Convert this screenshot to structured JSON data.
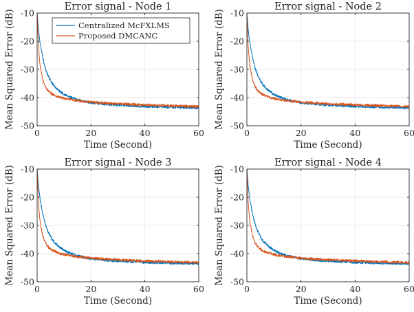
{
  "chart_data": [
    {
      "type": "line",
      "title": "Error signal - Node 1",
      "xlabel": "Time (Second)",
      "ylabel": "Mean Squared Error (dB)",
      "xlim": [
        0,
        60
      ],
      "ylim": [
        -50,
        -10
      ],
      "xticks": [
        0,
        20,
        40,
        60
      ],
      "yticks": [
        -10,
        -20,
        -30,
        -40,
        -50
      ],
      "grid": true,
      "legend": "top-left",
      "series": [
        {
          "name": "Centralized McFXLMS",
          "color": "#0072BD",
          "x": [
            0,
            0.5,
            1,
            2,
            3,
            4,
            5,
            6,
            8,
            10,
            12,
            15,
            20,
            25,
            30,
            40,
            50,
            60
          ],
          "y": [
            -10,
            -16,
            -20,
            -25.5,
            -29.5,
            -32,
            -34,
            -35.5,
            -37.5,
            -38.8,
            -39.8,
            -40.8,
            -41.8,
            -42.3,
            -42.6,
            -43.1,
            -43.4,
            -43.6
          ]
        },
        {
          "name": "Proposed DMCANC",
          "color": "#D95319",
          "x": [
            0,
            0.5,
            1,
            2,
            3,
            4,
            5,
            6,
            8,
            10,
            12,
            15,
            20,
            25,
            30,
            40,
            50,
            60
          ],
          "y": [
            -10,
            -22,
            -28,
            -33.5,
            -36,
            -37.5,
            -38.4,
            -39,
            -39.8,
            -40.3,
            -40.7,
            -41.1,
            -41.6,
            -41.9,
            -42.2,
            -42.6,
            -42.9,
            -43.2
          ]
        }
      ]
    },
    {
      "type": "line",
      "title": "Error signal - Node 2",
      "xlabel": "Time (Second)",
      "ylabel": "Mean Squared Error (dB)",
      "xlim": [
        0,
        60
      ],
      "ylim": [
        -50,
        -10
      ],
      "xticks": [
        0,
        20,
        40,
        60
      ],
      "yticks": [
        -10,
        -20,
        -30,
        -40,
        -50
      ],
      "grid": true,
      "series": [
        {
          "name": "Centralized McFXLMS",
          "color": "#0072BD",
          "x": [
            0,
            0.5,
            1,
            2,
            3,
            4,
            5,
            6,
            8,
            10,
            12,
            15,
            20,
            25,
            30,
            40,
            50,
            60
          ],
          "y": [
            -10,
            -16,
            -20,
            -25.5,
            -29.5,
            -32,
            -34,
            -35.5,
            -37.5,
            -38.8,
            -39.8,
            -40.8,
            -41.8,
            -42.3,
            -42.6,
            -43.1,
            -43.4,
            -43.6
          ]
        },
        {
          "name": "Proposed DMCANC",
          "color": "#D95319",
          "x": [
            0,
            0.5,
            1,
            2,
            3,
            4,
            5,
            6,
            8,
            10,
            12,
            15,
            20,
            25,
            30,
            40,
            50,
            60
          ],
          "y": [
            -10,
            -22,
            -28,
            -33.5,
            -36,
            -37.5,
            -38.4,
            -39,
            -39.8,
            -40.3,
            -40.7,
            -41.1,
            -41.6,
            -41.9,
            -42.2,
            -42.6,
            -42.9,
            -43.2
          ]
        }
      ]
    },
    {
      "type": "line",
      "title": "Error signal - Node 3",
      "xlabel": "Time (Second)",
      "ylabel": "Mean Squared Error (dB)",
      "xlim": [
        0,
        60
      ],
      "ylim": [
        -50,
        -10
      ],
      "xticks": [
        0,
        20,
        40,
        60
      ],
      "yticks": [
        -10,
        -20,
        -30,
        -40,
        -50
      ],
      "grid": true,
      "series": [
        {
          "name": "Centralized McFXLMS",
          "color": "#0072BD",
          "x": [
            0,
            0.5,
            1,
            2,
            3,
            4,
            5,
            6,
            8,
            10,
            12,
            15,
            20,
            25,
            30,
            40,
            50,
            60
          ],
          "y": [
            -10,
            -16,
            -20,
            -25.5,
            -29.5,
            -32,
            -34,
            -35.5,
            -37.5,
            -38.8,
            -39.8,
            -40.8,
            -41.8,
            -42.3,
            -42.6,
            -43.1,
            -43.4,
            -43.6
          ]
        },
        {
          "name": "Proposed DMCANC",
          "color": "#D95319",
          "x": [
            0,
            0.5,
            1,
            2,
            3,
            4,
            5,
            6,
            8,
            10,
            12,
            15,
            20,
            25,
            30,
            40,
            50,
            60
          ],
          "y": [
            -10,
            -22,
            -28,
            -33.5,
            -36,
            -37.5,
            -38.4,
            -39,
            -39.8,
            -40.3,
            -40.7,
            -41.1,
            -41.6,
            -41.9,
            -42.2,
            -42.6,
            -42.9,
            -43.2
          ]
        }
      ]
    },
    {
      "type": "line",
      "title": "Error signal - Node 4",
      "xlabel": "Time (Second)",
      "ylabel": "Mean Squared Error (dB)",
      "xlim": [
        0,
        60
      ],
      "ylim": [
        -50,
        -10
      ],
      "xticks": [
        0,
        20,
        40,
        60
      ],
      "yticks": [
        -10,
        -20,
        -30,
        -40,
        -50
      ],
      "grid": true,
      "series": [
        {
          "name": "Centralized McFXLMS",
          "color": "#0072BD",
          "x": [
            0,
            0.5,
            1,
            2,
            3,
            4,
            5,
            6,
            8,
            10,
            12,
            15,
            20,
            25,
            30,
            40,
            50,
            60
          ],
          "y": [
            -10,
            -16,
            -20,
            -25.5,
            -29.5,
            -32,
            -34,
            -35.5,
            -37.5,
            -38.8,
            -39.8,
            -40.8,
            -41.8,
            -42.3,
            -42.6,
            -43.1,
            -43.4,
            -43.6
          ]
        },
        {
          "name": "Proposed DMCANC",
          "color": "#D95319",
          "x": [
            0,
            0.5,
            1,
            2,
            3,
            4,
            5,
            6,
            8,
            10,
            12,
            15,
            20,
            25,
            30,
            40,
            50,
            60
          ],
          "y": [
            -10,
            -22,
            -28,
            -33.5,
            -36,
            -37.5,
            -38.4,
            -39,
            -39.8,
            -40.3,
            -40.7,
            -41.1,
            -41.6,
            -41.9,
            -42.2,
            -42.6,
            -42.9,
            -43.2
          ]
        }
      ]
    }
  ]
}
